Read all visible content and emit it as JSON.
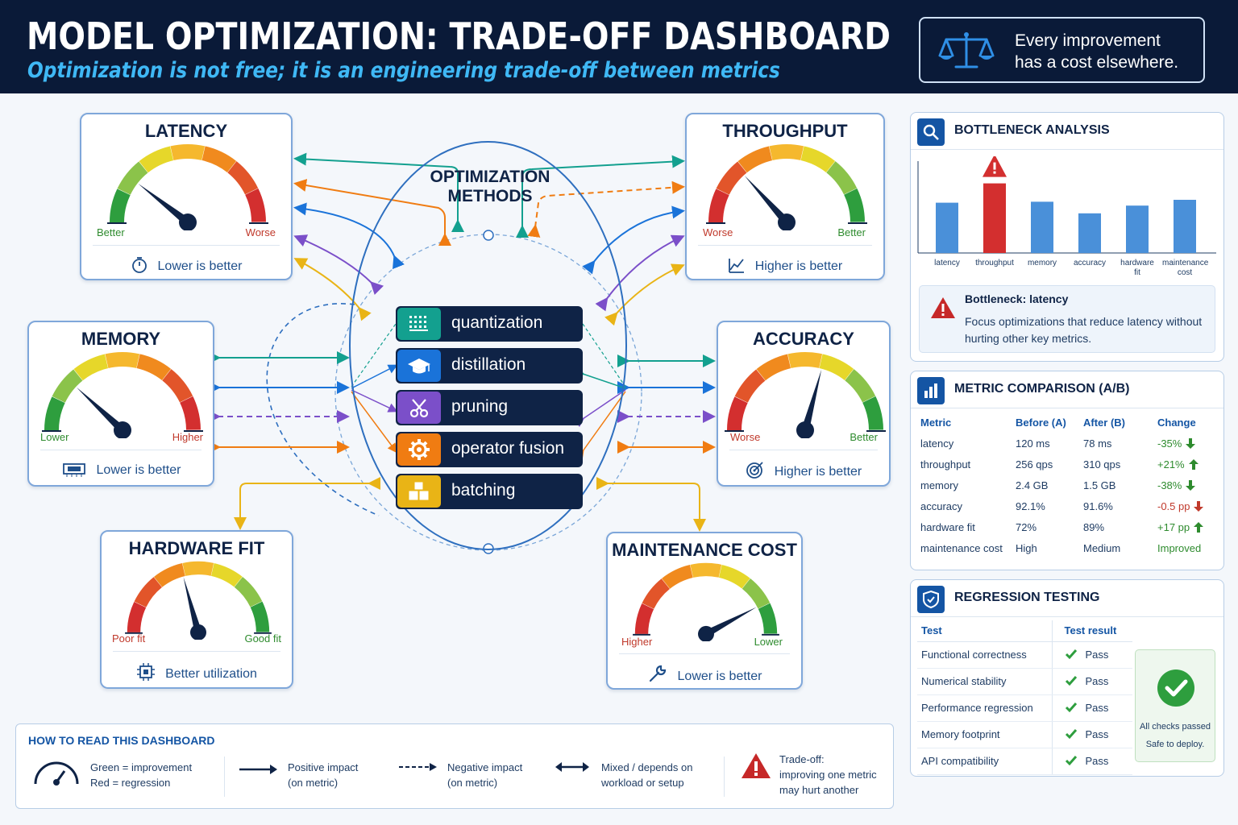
{
  "header": {
    "title": "MODEL OPTIMIZATION: TRADE-OFF DASHBOARD",
    "subtitle": "Optimization is not free; it is an engineering trade-off between metrics",
    "quote_line1": "Every improvement",
    "quote_line2": "has a cost elsewhere."
  },
  "metrics": {
    "latency": {
      "title": "LATENCY",
      "left_label": "Better",
      "right_label": "Worse",
      "footer": "Lower is better"
    },
    "throughput": {
      "title": "THROUGHPUT",
      "left_label": "Worse",
      "right_label": "Better",
      "footer": "Higher is better"
    },
    "memory": {
      "title": "MEMORY",
      "left_label": "Lower",
      "right_label": "Higher",
      "footer": "Lower is better"
    },
    "accuracy": {
      "title": "ACCURACY",
      "left_label": "Worse",
      "right_label": "Better",
      "footer": "Higher is better"
    },
    "hardware_fit": {
      "title": "HARDWARE FIT",
      "left_label": "Poor fit",
      "right_label": "Good fit",
      "footer": "Better utilization"
    },
    "maintenance_cost": {
      "title": "MAINTENANCE COST",
      "left_label": "Higher",
      "right_label": "Lower",
      "footer": "Lower is better"
    }
  },
  "methods": {
    "title_line1": "OPTIMIZATION",
    "title_line2": "METHODS",
    "items": [
      {
        "label": "quantization",
        "color": "#13a08f",
        "icon": "grid-icon"
      },
      {
        "label": "distillation",
        "color": "#1a73d9",
        "icon": "graduation-cap-icon"
      },
      {
        "label": "pruning",
        "color": "#7b4fc9",
        "icon": "scissors-icon"
      },
      {
        "label": "operator fusion",
        "color": "#f07c12",
        "icon": "gear-icon"
      },
      {
        "label": "batching",
        "color": "#e9b416",
        "icon": "boxes-icon"
      }
    ]
  },
  "bottleneck": {
    "title": "BOTTLENECK ANALYSIS",
    "bars": [
      {
        "label_line1": "latency",
        "label_line2": "",
        "value": 0.52,
        "highlight": true
      },
      {
        "label_line1": "throughput",
        "label_line2": "",
        "value": 0.72,
        "highlight": true
      },
      {
        "label_line1": "memory",
        "label_line2": "",
        "value": 0.53,
        "highlight": false
      },
      {
        "label_line1": "accuracy",
        "label_line2": "",
        "value": 0.41,
        "highlight": false
      },
      {
        "label_line1": "hardware",
        "label_line2": "fit",
        "value": 0.49,
        "highlight": false
      },
      {
        "label_line1": "maintenance",
        "label_line2": "cost",
        "value": 0.55,
        "highlight": false
      }
    ],
    "alert_title": "Bottleneck: latency",
    "alert_text": "Focus optimizations that reduce latency without hurting other key metrics."
  },
  "comparison": {
    "title": "METRIC COMPARISON (A/B)",
    "headers": [
      "Metric",
      "Before (A)",
      "After (B)",
      "Change"
    ],
    "rows": [
      {
        "metric": "latency",
        "before": "120 ms",
        "after": "78 ms",
        "change": "-35%",
        "trend": "down",
        "good": true
      },
      {
        "metric": "throughput",
        "before": "256 qps",
        "after": "310 qps",
        "change": "+21%",
        "trend": "up",
        "good": true
      },
      {
        "metric": "memory",
        "before": "2.4 GB",
        "after": "1.5 GB",
        "change": "-38%",
        "trend": "down",
        "good": true
      },
      {
        "metric": "accuracy",
        "before": "92.1%",
        "after": "91.6%",
        "change": "-0.5 pp",
        "trend": "down",
        "good": false
      },
      {
        "metric": "hardware fit",
        "before": "72%",
        "after": "89%",
        "change": "+17 pp",
        "trend": "up",
        "good": true
      },
      {
        "metric": "maintenance cost",
        "before": "High",
        "after": "Medium",
        "change": "Improved",
        "trend": "",
        "good": true
      }
    ]
  },
  "regression": {
    "title": "REGRESSION TESTING",
    "headers": [
      "Test",
      "Test result"
    ],
    "rows": [
      {
        "test": "Functional correctness",
        "result": "Pass"
      },
      {
        "test": "Numerical stability",
        "result": "Pass"
      },
      {
        "test": "Performance regression",
        "result": "Pass"
      },
      {
        "test": "Memory footprint",
        "result": "Pass"
      },
      {
        "test": "API compatibility",
        "result": "Pass"
      }
    ],
    "summary_line1": "All checks passed",
    "summary_line2": "Safe to deploy."
  },
  "legend": {
    "title": "HOW TO READ THIS DASHBOARD",
    "gauge_line1": "Green = improvement",
    "gauge_line2": "Red = regression",
    "positive_line1": "Positive impact",
    "positive_line2": "(on metric)",
    "negative_line1": "Negative impact",
    "negative_line2": "(on metric)",
    "mixed_line1": "Mixed / depends on",
    "mixed_line2": "workload or setup",
    "tradeoff_line1": "Trade-off:",
    "tradeoff_line2": "improving one metric",
    "tradeoff_line3": "may hurt another"
  },
  "colors": {
    "navy": "#0a1a38",
    "accent": "#3fb8f5",
    "good": "#2e8b2e",
    "bad": "#c0392b"
  }
}
